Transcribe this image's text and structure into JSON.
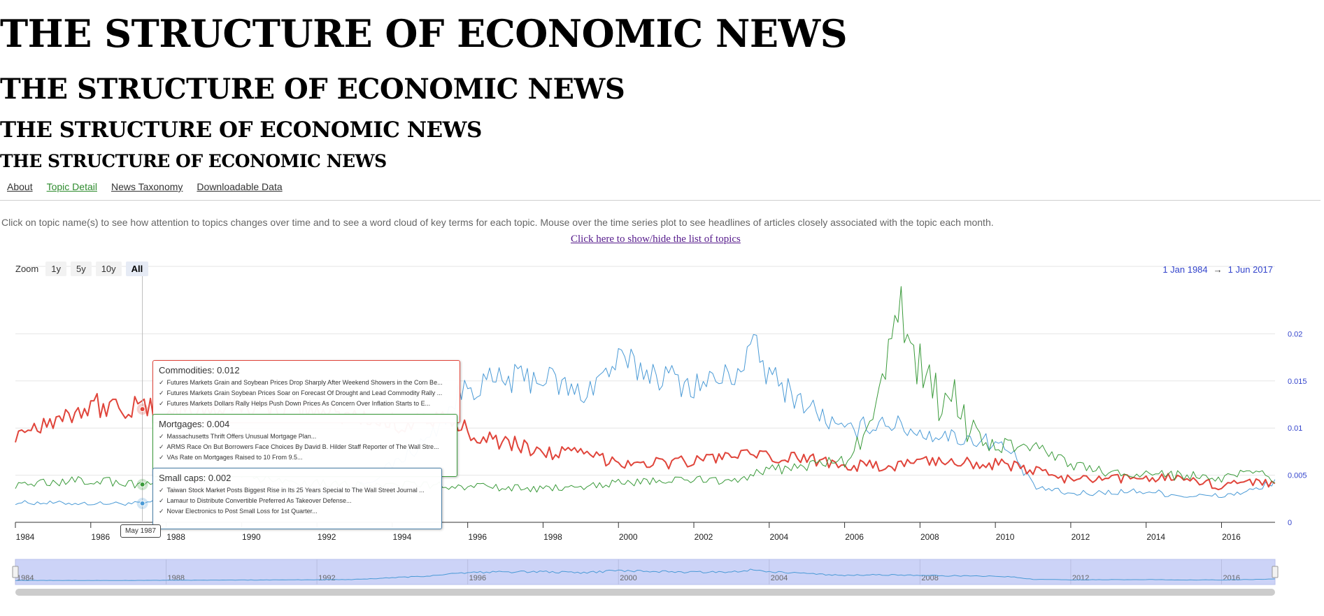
{
  "titles": [
    "THE STRUCTURE OF ECONOMIC NEWS",
    "THE STRUCTURE OF ECONOMIC NEWS",
    "THE STRUCTURE OF ECONOMIC NEWS",
    "THE STRUCTURE OF ECONOMIC NEWS"
  ],
  "nav": {
    "about": "About",
    "topic_detail": "Topic Detail",
    "taxonomy": "News Taxonomy",
    "data": "Downloadable Data"
  },
  "description": "Click on topic name(s) to see how attention to topics changes over time and to see a word cloud of key terms for each topic. Mouse over the time series plot to see headlines of articles closely associated with the topic each month.",
  "toggle_link": "Click here to show/hide the list of topics",
  "zoom": {
    "label": "Zoom",
    "buttons": [
      "1y",
      "5y",
      "10y",
      "All"
    ],
    "selected": "All"
  },
  "range": {
    "from": "1 Jan 1984",
    "arrow": "→",
    "to": "1 Jun 2017"
  },
  "tooltips": [
    {
      "title": "Commodities: 0.012",
      "color": "#e0443a",
      "lines": [
        "Futures Markets Grain and Soybean Prices Drop Sharply After Weekend Showers in the Corn Be...",
        "Futures Markets Grain Soybean Prices Soar on Forecast Of Drought and Lead Commodity Rally ...",
        "Futures Markets Dollars Rally Helps Push Down Prices As Concern Over Inflation Starts to E..."
      ]
    },
    {
      "title": "Mortgages: 0.004",
      "color": "#3a9a3a",
      "lines": [
        "Massachusetts Thrift Offers Unusual Mortgage Plan...",
        "ARMS Race On But Borrowers Face Choices By David B. Hilder Staff Reporter of The Wall Stre...",
        "VAs Rate on Mortgages Raised to 10 From 9.5..."
      ]
    },
    {
      "title": "Small caps: 0.002",
      "color": "#4a9ad6",
      "lines": [
        "Taiwan Stock Market Posts Biggest Rise in Its 25 Years Special to The Wall Street Journal ...",
        "Lamaur to Distribute Convertible Preferred As Takeover Defense...",
        "Novar Electronics to Post Small Loss for 1st Quarter..."
      ]
    }
  ],
  "hover_date": "May 1987",
  "chart_data": {
    "type": "line",
    "x_range": [
      1984.0,
      2017.42
    ],
    "ylim": [
      0,
      0.025
    ],
    "y_ticks": [
      0,
      0.005,
      0.01,
      0.015,
      0.02
    ],
    "y_tick_labels": [
      "0",
      "0.005",
      "0.01",
      "0.015",
      "0.02"
    ],
    "x_ticks": [
      1984,
      1986,
      1988,
      1990,
      1992,
      1994,
      1996,
      1998,
      2000,
      2002,
      2004,
      2006,
      2008,
      2010,
      2012,
      2014,
      2016
    ],
    "navigator_ticks": [
      1984,
      1988,
      1992,
      1996,
      2000,
      2004,
      2008,
      2012,
      2016
    ],
    "grid": true,
    "series": [
      {
        "name": "Small caps",
        "color": "#4a9ad6",
        "width": 1,
        "points": [
          [
            1984,
            0.0021
          ],
          [
            1986,
            0.002
          ],
          [
            1987.4,
            0.002
          ],
          [
            1988,
            0.0023
          ],
          [
            1990,
            0.0026
          ],
          [
            1992,
            0.003
          ],
          [
            1993,
            0.0035
          ],
          [
            1994,
            0.006
          ],
          [
            1995,
            0.009
          ],
          [
            1995.5,
            0.012
          ],
          [
            1996,
            0.0145
          ],
          [
            1997,
            0.015
          ],
          [
            1998,
            0.0155
          ],
          [
            1999,
            0.0135
          ],
          [
            2000,
            0.017
          ],
          [
            2001,
            0.0158
          ],
          [
            2002,
            0.0145
          ],
          [
            2003,
            0.0155
          ],
          [
            2003.6,
            0.0185
          ],
          [
            2004,
            0.0155
          ],
          [
            2005,
            0.0125
          ],
          [
            2006,
            0.0095
          ],
          [
            2007,
            0.0108
          ],
          [
            2008,
            0.0095
          ],
          [
            2009,
            0.009
          ],
          [
            2010,
            0.0085
          ],
          [
            2010.5,
            0.007
          ],
          [
            2011,
            0.0038
          ],
          [
            2012,
            0.003
          ],
          [
            2013,
            0.0032
          ],
          [
            2014,
            0.0033
          ],
          [
            2015,
            0.0028
          ],
          [
            2016,
            0.0028
          ],
          [
            2017,
            0.0035
          ],
          [
            2017.42,
            0.0045
          ]
        ]
      },
      {
        "name": "Commodities",
        "color": "#e0443a",
        "width": 2,
        "points": [
          [
            1984,
            0.0095
          ],
          [
            1985,
            0.011
          ],
          [
            1986,
            0.0125
          ],
          [
            1987.4,
            0.012
          ],
          [
            1988,
            0.0115
          ],
          [
            1990,
            0.0125
          ],
          [
            1992,
            0.0118
          ],
          [
            1993,
            0.0112
          ],
          [
            1994,
            0.0105
          ],
          [
            1995,
            0.011
          ],
          [
            1996,
            0.0098
          ],
          [
            1997,
            0.0085
          ],
          [
            1998,
            0.0075
          ],
          [
            1999,
            0.0072
          ],
          [
            2000,
            0.0065
          ],
          [
            2001,
            0.0063
          ],
          [
            2002,
            0.0065
          ],
          [
            2003,
            0.0072
          ],
          [
            2004,
            0.0068
          ],
          [
            2005,
            0.0068
          ],
          [
            2006,
            0.0062
          ],
          [
            2007,
            0.0058
          ],
          [
            2008,
            0.0065
          ],
          [
            2009,
            0.0065
          ],
          [
            2010,
            0.0062
          ],
          [
            2011,
            0.0055
          ],
          [
            2012,
            0.0045
          ],
          [
            2013,
            0.0045
          ],
          [
            2014,
            0.0048
          ],
          [
            2015,
            0.0048
          ],
          [
            2016,
            0.0038
          ],
          [
            2017,
            0.0045
          ],
          [
            2017.42,
            0.004
          ]
        ]
      },
      {
        "name": "Mortgages",
        "color": "#3a9a3a",
        "width": 1,
        "points": [
          [
            1984,
            0.004
          ],
          [
            1986,
            0.0045
          ],
          [
            1987.4,
            0.004
          ],
          [
            1988,
            0.0045
          ],
          [
            1990,
            0.0048
          ],
          [
            1992,
            0.0042
          ],
          [
            1994,
            0.004
          ],
          [
            1996,
            0.0038
          ],
          [
            1998,
            0.0035
          ],
          [
            2000,
            0.0042
          ],
          [
            2002,
            0.0045
          ],
          [
            2003,
            0.0045
          ],
          [
            2004,
            0.0055
          ],
          [
            2005,
            0.006
          ],
          [
            2006,
            0.0065
          ],
          [
            2006.7,
            0.01
          ],
          [
            2007,
            0.0145
          ],
          [
            2007.5,
            0.022
          ],
          [
            2008,
            0.018
          ],
          [
            2008.5,
            0.012
          ],
          [
            2009,
            0.0135
          ],
          [
            2009.4,
            0.0095
          ],
          [
            2010,
            0.008
          ],
          [
            2011,
            0.0085
          ],
          [
            2012,
            0.006
          ],
          [
            2013,
            0.0052
          ],
          [
            2014,
            0.005
          ],
          [
            2015,
            0.005
          ],
          [
            2016,
            0.0045
          ],
          [
            2017,
            0.0055
          ],
          [
            2017.42,
            0.004
          ]
        ]
      }
    ]
  }
}
